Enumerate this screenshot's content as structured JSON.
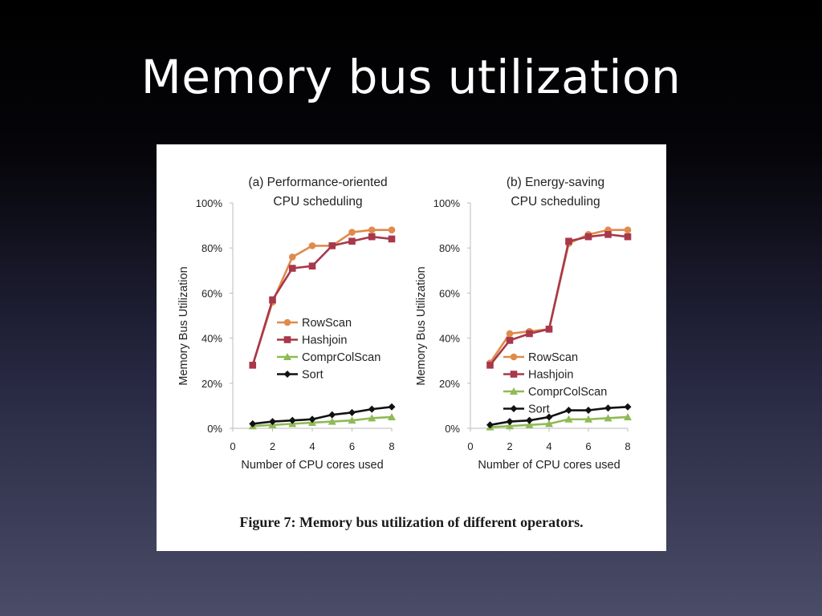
{
  "slide": {
    "title": "Memory bus utilization"
  },
  "figure": {
    "caption": "Figure 7:  Memory bus utilization of different operators."
  },
  "colors": {
    "RowScan": "#e08a4c",
    "Hashjoin": "#a8384a",
    "ComprColScan": "#8fba55",
    "Sort": "#111111",
    "axis": "#bbbbbb",
    "slide_background_top": "#000000",
    "slide_background_bottom": "#4a4d68"
  },
  "chart_data": [
    {
      "type": "line",
      "title_lines": [
        "(a) Performance-oriented",
        "CPU scheduling"
      ],
      "xlabel": "Number of CPU cores used",
      "ylabel": "Memory Bus Utilization",
      "xlim": [
        0,
        8
      ],
      "ylim": [
        0,
        100
      ],
      "x_ticks": [
        "0",
        "2",
        "4",
        "6",
        "8"
      ],
      "y_ticks": [
        "0%",
        "20%",
        "40%",
        "60%",
        "80%",
        "100%"
      ],
      "grid": false,
      "legend_position": "middle-right",
      "x": [
        1,
        2,
        3,
        4,
        5,
        6,
        7,
        8
      ],
      "series": [
        {
          "name": "RowScan",
          "marker": "circle",
          "values": [
            28,
            56,
            76,
            81,
            81,
            87,
            88,
            88
          ]
        },
        {
          "name": "Hashjoin",
          "marker": "square",
          "values": [
            28,
            57,
            71,
            72,
            81,
            83,
            85,
            84
          ]
        },
        {
          "name": "ComprColScan",
          "marker": "triangle",
          "values": [
            1,
            1.5,
            2,
            2.5,
            3,
            3.5,
            4.5,
            5
          ]
        },
        {
          "name": "Sort",
          "marker": "diamond",
          "values": [
            2,
            3,
            3.5,
            4,
            6,
            7,
            8.5,
            9.5
          ]
        }
      ]
    },
    {
      "type": "line",
      "title_lines": [
        "(b) Energy-saving",
        "CPU scheduling"
      ],
      "xlabel": "Number of CPU cores used",
      "ylabel": "Memory Bus Utilization",
      "xlim": [
        0,
        8
      ],
      "ylim": [
        0,
        100
      ],
      "x_ticks": [
        "0",
        "2",
        "4",
        "6",
        "8"
      ],
      "y_ticks": [
        "0%",
        "20%",
        "40%",
        "60%",
        "80%",
        "100%"
      ],
      "grid": false,
      "legend_position": "bottom-center",
      "x": [
        1,
        2,
        3,
        4,
        5,
        6,
        7,
        8
      ],
      "series": [
        {
          "name": "RowScan",
          "marker": "circle",
          "values": [
            29,
            42,
            43,
            44,
            82,
            86,
            88,
            88
          ]
        },
        {
          "name": "Hashjoin",
          "marker": "square",
          "values": [
            28,
            39,
            42,
            44,
            83,
            85,
            86,
            85
          ]
        },
        {
          "name": "ComprColScan",
          "marker": "triangle",
          "values": [
            0.5,
            1,
            1.5,
            2,
            4,
            4,
            4.5,
            5
          ]
        },
        {
          "name": "Sort",
          "marker": "diamond",
          "values": [
            1.5,
            3,
            3.5,
            5,
            8,
            8,
            9,
            9.5
          ]
        }
      ]
    }
  ]
}
